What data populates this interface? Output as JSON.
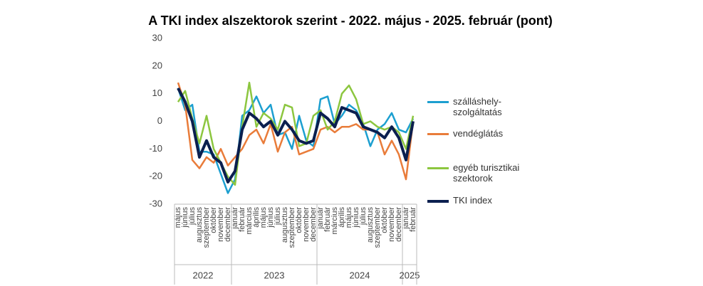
{
  "chart_data": {
    "type": "line",
    "title": "A TKI index alszektorok szerint - 2022. május - 2025. február (pont)",
    "categories": [
      "május",
      "június",
      "július",
      "augusztus",
      "szeptember",
      "október",
      "november",
      "december",
      "január",
      "február",
      "március",
      "április",
      "május",
      "június",
      "július",
      "augusztus",
      "szeptember",
      "október",
      "november",
      "december",
      "január",
      "február",
      "március",
      "április",
      "május",
      "június",
      "július",
      "augusztus",
      "szeptember",
      "október",
      "november",
      "december",
      "január",
      "február"
    ],
    "category_years": [
      "2022",
      "2022",
      "2022",
      "2022",
      "2022",
      "2022",
      "2022",
      "2022",
      "2023",
      "2023",
      "2023",
      "2023",
      "2023",
      "2023",
      "2023",
      "2023",
      "2023",
      "2023",
      "2023",
      "2023",
      "2024",
      "2024",
      "2024",
      "2024",
      "2024",
      "2024",
      "2024",
      "2024",
      "2024",
      "2024",
      "2024",
      "2024",
      "2025",
      "2025"
    ],
    "series": [
      {
        "name": "szálláshely-szolgáltatás",
        "color": "#1c9fd0",
        "width": 2.5,
        "values": [
          12,
          4,
          6,
          -11,
          -11,
          -12,
          -19,
          -26,
          -21,
          2,
          4,
          9,
          3,
          6,
          -5,
          -4,
          -10,
          2,
          -7,
          -9,
          8,
          9,
          -1,
          2,
          6,
          4,
          -1,
          -9,
          -3,
          -1,
          3,
          -3,
          -4,
          1
        ]
      },
      {
        "name": "vendéglátás",
        "color": "#e97c3a",
        "width": 2.5,
        "values": [
          14,
          6,
          -14,
          -17,
          -13,
          -15,
          -10,
          -16,
          -13,
          -10,
          -5,
          -3,
          -8,
          -1,
          -11,
          -4,
          -2,
          -12,
          -11,
          -10,
          -3,
          -2,
          -4,
          -2,
          -2,
          -1,
          -3,
          -3,
          -4,
          -12,
          -7,
          -12,
          -21,
          0
        ]
      },
      {
        "name": "egyéb turisztikai szektorok",
        "color": "#8cc63f",
        "width": 2.5,
        "values": [
          7,
          11,
          1,
          -8,
          2,
          -10,
          -15,
          -20,
          -23,
          -2,
          14,
          -2,
          3,
          1,
          -3,
          6,
          5,
          -9,
          -8,
          2,
          4,
          -3,
          0,
          10,
          13,
          8,
          -1,
          0,
          -2,
          -3,
          -2,
          -4,
          -10,
          2
        ]
      },
      {
        "name": "TKI index",
        "color": "#0b1f4f",
        "width": 4,
        "values": [
          12,
          7,
          0,
          -13,
          -7,
          -13,
          -15,
          -22,
          -18,
          -3,
          3,
          1,
          -2,
          0,
          -5,
          0,
          -3,
          -7,
          -8,
          -7,
          3,
          1,
          -2,
          5,
          4,
          3,
          -2,
          -3,
          -4,
          -6,
          -2,
          -6,
          -14,
          0
        ]
      }
    ],
    "ylim": [
      -30,
      30
    ],
    "yticks": [
      -30,
      -20,
      -10,
      0,
      10,
      20,
      30
    ],
    "grid": false
  }
}
